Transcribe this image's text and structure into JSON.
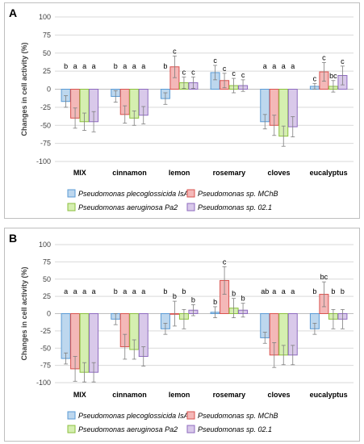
{
  "figure": {
    "series_names": [
      "Pseudomonas plecoglossicida IsA",
      "Pseudomonas sp. MChB",
      "Pseudomonas aeruginosa Pa2",
      "Pseudomonas sp. 02.1"
    ],
    "colors": {
      "fills": [
        "#bdd7ee",
        "#f4b8b8",
        "#d5efb0",
        "#d9c9ea"
      ],
      "strokes": [
        "#5b9bd5",
        "#d9534f",
        "#8cbf3f",
        "#8e6bbf"
      ],
      "grid": "#d9d9d9",
      "errorbar": "#7f7f7f"
    }
  },
  "chart_data": [
    {
      "type": "bar",
      "panel_label": "A",
      "ylabel": "Changes in cell activity (%)",
      "ylim": [
        -100,
        100
      ],
      "yticks": [
        100,
        75,
        50,
        25,
        0,
        -25,
        -50,
        -75,
        -100
      ],
      "grid": true,
      "legend_position": "bottom",
      "categories": [
        "MIX",
        "cinnamon",
        "lemon",
        "rosemary",
        "cloves",
        "eucalyptus"
      ],
      "series": [
        {
          "name": "Pseudomonas plecoglossicida IsA",
          "values": [
            -17,
            -10,
            -13,
            23,
            -45,
            4
          ],
          "errors": [
            8,
            8,
            8,
            10,
            10,
            4
          ],
          "letters": [
            "b",
            "b",
            "b",
            "c",
            "a",
            "c"
          ]
        },
        {
          "name": "Pseudomonas sp. MChB",
          "values": [
            -40,
            -35,
            31,
            12,
            -50,
            24
          ],
          "errors": [
            14,
            12,
            15,
            10,
            14,
            13
          ],
          "letters": [
            "a",
            "a",
            "c",
            "c",
            "a",
            "c"
          ]
        },
        {
          "name": "Pseudomonas aeruginosa Pa2",
          "values": [
            -45,
            -40,
            9,
            5,
            -65,
            4
          ],
          "errors": [
            12,
            10,
            8,
            10,
            14,
            8
          ],
          "letters": [
            "a",
            "a",
            "c",
            "c",
            "a",
            "bc"
          ]
        },
        {
          "name": "Pseudomonas sp. 02.1",
          "values": [
            -45,
            -36,
            9,
            5,
            -52,
            19
          ],
          "errors": [
            14,
            12,
            8,
            8,
            14,
            13
          ],
          "letters": [
            "a",
            "a",
            "c",
            "c",
            "a",
            "c"
          ]
        }
      ]
    },
    {
      "type": "bar",
      "panel_label": "B",
      "ylabel": "Changes in cell activity (%)",
      "ylim": [
        -100,
        100
      ],
      "yticks": [
        100,
        75,
        50,
        25,
        0,
        -25,
        -50,
        -75,
        -100
      ],
      "grid": true,
      "legend_position": "bottom",
      "categories": [
        "MIX",
        "cinnamon",
        "lemon",
        "rosemary",
        "cloves",
        "eucalyptus"
      ],
      "series": [
        {
          "name": "Pseudomonas plecoglossicida IsA",
          "values": [
            -65,
            -8,
            -22,
            2,
            -35,
            -22
          ],
          "errors": [
            8,
            8,
            8,
            8,
            8,
            8
          ],
          "letters": [
            "a",
            "b",
            "b",
            "b",
            "ab",
            "b"
          ]
        },
        {
          "name": "Pseudomonas sp. MChB",
          "values": [
            -80,
            -48,
            0,
            48,
            -60,
            28
          ],
          "errors": [
            18,
            18,
            18,
            20,
            18,
            18
          ],
          "letters": [
            "a",
            "a",
            "b",
            "c",
            "a",
            "bc"
          ]
        },
        {
          "name": "Pseudomonas aeruginosa Pa2",
          "values": [
            -85,
            -52,
            -8,
            8,
            -60,
            -8
          ],
          "errors": [
            14,
            14,
            14,
            14,
            14,
            14
          ],
          "letters": [
            "a",
            "a",
            "b",
            "b",
            "a",
            "b"
          ]
        },
        {
          "name": "Pseudomonas sp. 02.1",
          "values": [
            -85,
            -62,
            5,
            5,
            -60,
            -8
          ],
          "errors": [
            14,
            14,
            8,
            10,
            14,
            14
          ],
          "letters": [
            "a",
            "a",
            "b",
            "b",
            "a",
            "b"
          ]
        }
      ]
    }
  ]
}
